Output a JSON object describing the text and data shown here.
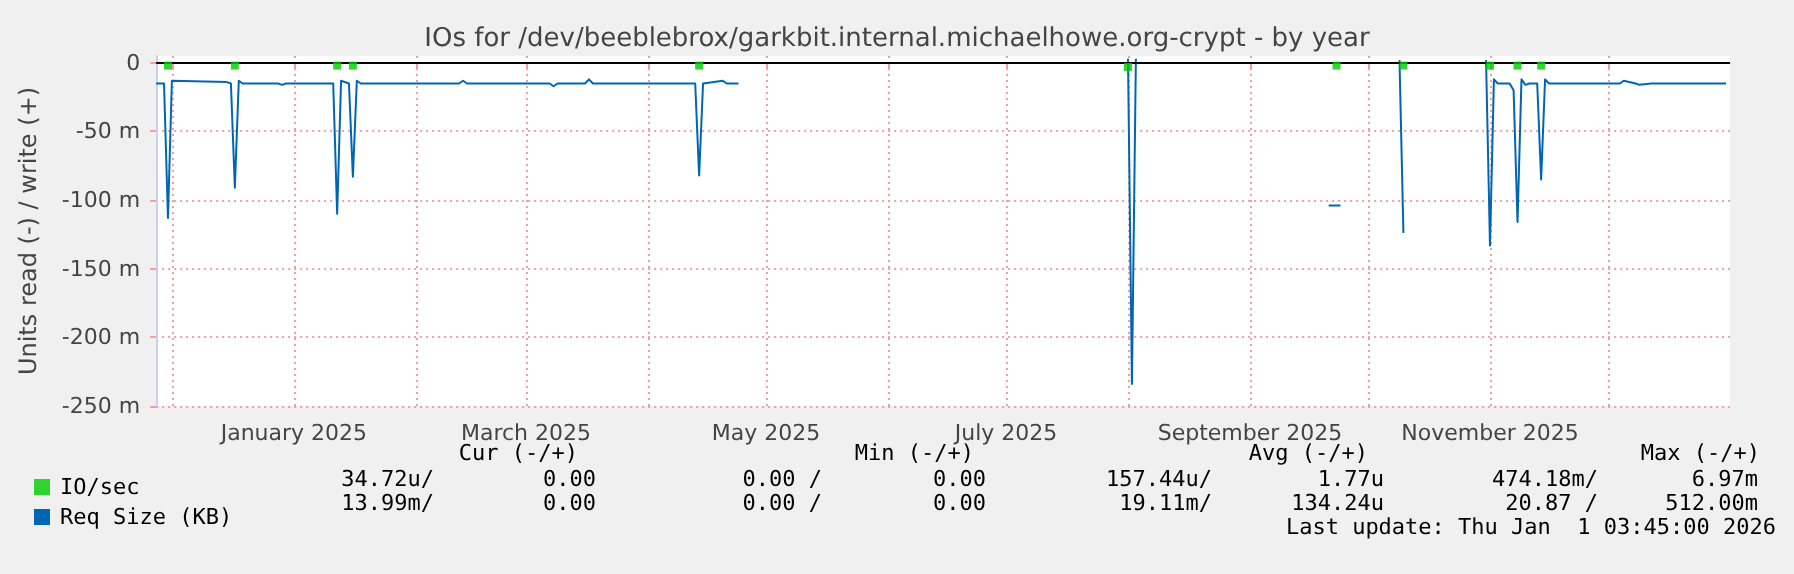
{
  "chart_data": {
    "type": "line",
    "title": "IOs for /dev/beeblebrox/garkbit.internal.michaelhowe.org-crypt - by year",
    "ylabel": "Units read (-) / write (+)",
    "xlim": [
      "2024-11-27",
      "2026-01-01"
    ],
    "xticks": [
      {
        "value": "2024-12-01",
        "label": null
      },
      {
        "value": "2025-01-01",
        "label": "January 2025"
      },
      {
        "value": "2025-02-01",
        "label": null
      },
      {
        "value": "2025-03-01",
        "label": "March 2025"
      },
      {
        "value": "2025-04-01",
        "label": null
      },
      {
        "value": "2025-05-01",
        "label": "May 2025"
      },
      {
        "value": "2025-06-01",
        "label": null
      },
      {
        "value": "2025-07-01",
        "label": "July 2025"
      },
      {
        "value": "2025-08-01",
        "label": null
      },
      {
        "value": "2025-09-01",
        "label": "September 2025"
      },
      {
        "value": "2025-10-01",
        "label": null
      },
      {
        "value": "2025-11-01",
        "label": "November 2025"
      },
      {
        "value": "2025-12-01",
        "label": null
      }
    ],
    "ylim": [
      -250,
      5
    ],
    "yticks": [
      {
        "value": -250,
        "label": "-250 m"
      },
      {
        "value": -200,
        "label": "-200 m"
      },
      {
        "value": -150,
        "label": "-150 m"
      },
      {
        "value": -100,
        "label": "-100 m"
      },
      {
        "value": -50,
        "label": "-50 m"
      },
      0
    ],
    "grid": true,
    "legend": "bottom left",
    "ref_lines": [
      {
        "axis": "y",
        "value": 0,
        "color": "#000000"
      }
    ],
    "series": [
      {
        "name": "IO/sec",
        "type": "scatter",
        "marker": "square",
        "color": "#00cc00",
        "x": [
          "2024-11-30",
          "2024-12-17",
          "2025-01-12",
          "2025-01-16",
          "2025-04-14",
          "2025-08-01",
          "2025-09-23",
          "2025-10-10",
          "2025-11-01",
          "2025-11-08",
          "2025-11-14"
        ],
        "values": [
          -2,
          -2,
          -2,
          -2,
          -2,
          -3,
          -2,
          -2,
          -2,
          -2,
          -2
        ]
      },
      {
        "name": "Req Size (KB)",
        "color": "#0066b3",
        "x": [
          "2024-11-27",
          "2024-11-29",
          "2024-11-30",
          "2024-12-01",
          "2024-12-15",
          "2024-12-16",
          "2024-12-17",
          "2024-12-18",
          "2024-12-19",
          "2024-12-28",
          "2024-12-29",
          "2024-12-30",
          "2025-01-11",
          "2025-01-12",
          "2025-01-13",
          "2025-01-15",
          "2025-01-16",
          "2025-01-17",
          "2025-01-18",
          "2025-02-12",
          "2025-02-13",
          "2025-02-14",
          "2025-03-07",
          "2025-03-08",
          "2025-03-09",
          "2025-03-16",
          "2025-03-17",
          "2025-03-18",
          "2025-04-13",
          "2025-04-14",
          "2025-04-15",
          "2025-04-20",
          "2025-04-21",
          "2025-04-24",
          "2025-04-25",
          "2025-08-01",
          "2025-08-02",
          "2025-08-03",
          "2025-08-04",
          "2025-09-21",
          "2025-09-24",
          "2025-09-25",
          "2025-10-09",
          "2025-10-10",
          "2025-10-11",
          "2025-10-31",
          "2025-11-01",
          "2025-11-02",
          "2025-11-03",
          "2025-11-06",
          "2025-11-07",
          "2025-11-08",
          "2025-11-09",
          "2025-11-10",
          "2025-11-11",
          "2025-11-13",
          "2025-11-14",
          "2025-11-15",
          "2025-11-16",
          "2025-12-04",
          "2025-12-05",
          "2025-12-08",
          "2025-12-09",
          "2025-12-12",
          "2025-12-31"
        ],
        "values": [
          -15,
          -15,
          -113,
          -13,
          -14,
          -15,
          -91,
          -13,
          -15,
          -15,
          -16,
          -15,
          -15,
          -110,
          -13,
          -15,
          -83,
          -13,
          -15,
          -15,
          -13,
          -15,
          -15,
          -17,
          -15,
          -15,
          -12,
          -15,
          -15,
          -82,
          -15,
          -13,
          -15,
          -15,
          null,
          3,
          -234,
          3,
          null,
          -104,
          -104,
          null,
          2,
          -124,
          null,
          2,
          -133,
          -12,
          -15,
          -15,
          -20,
          -116,
          -12,
          -16,
          -15,
          -15,
          -85,
          -12,
          -15,
          -15,
          -13,
          -15,
          -16,
          -15,
          -15
        ]
      }
    ],
    "annotations": [
      "Cur (-/+)",
      "Min (-/+)",
      "Avg (-/+)",
      "Max (-/+)",
      "34.72u/",
      "0.00",
      "0.00 /",
      "0.00",
      "157.44u/",
      "1.77u",
      "474.18m/",
      "6.97m",
      "13.99m/",
      "0.00",
      "0.00 /",
      "0.00",
      "19.11m/",
      "134.24u",
      "20.87 /",
      "512.00m",
      "Last update: Thu Jan  1 03:45:00 2026"
    ]
  }
}
